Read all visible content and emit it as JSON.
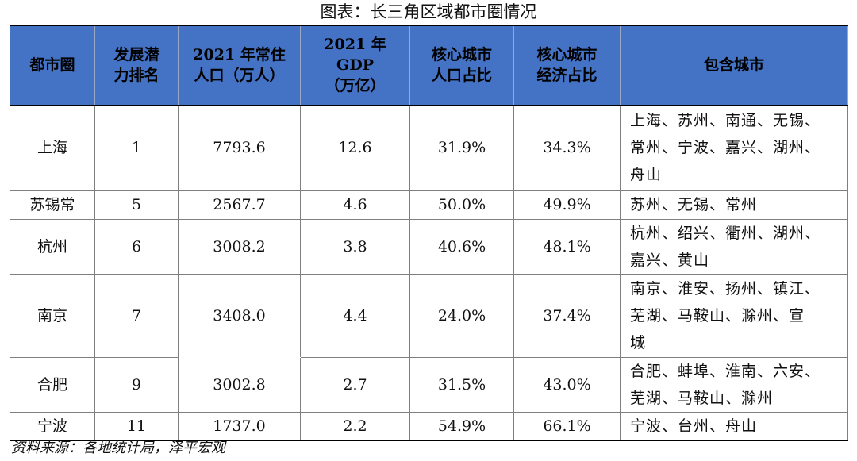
{
  "caption": "图表：长三角区域都市圈情况",
  "headers": {
    "c1": [
      "都市圈"
    ],
    "c2": [
      "发展潜",
      "力排名"
    ],
    "c3": [
      "2021 年常住",
      "人口（万人）"
    ],
    "c4": [
      "2021 年 GDP",
      "（万亿）"
    ],
    "c5": [
      "核心城市",
      "人口占比"
    ],
    "c6": [
      "核心城市",
      "经济占比"
    ],
    "c7": [
      "包含城市"
    ]
  },
  "rows": [
    {
      "name": "上海",
      "rank": "1",
      "pop": "7793.6",
      "gdp": "12.6",
      "pop_share": "31.9%",
      "econ_share": "34.3%",
      "cities": [
        "上海、苏州、南通、无锡、",
        "常州、宁波、嘉兴、湖州、",
        "舟山"
      ]
    },
    {
      "name": "苏锡常",
      "rank": "5",
      "pop": "2567.7",
      "gdp": "4.6",
      "pop_share": "50.0%",
      "econ_share": "49.9%",
      "cities": [
        "苏州、无锡、常州"
      ]
    },
    {
      "name": "杭州",
      "rank": "6",
      "pop": "3008.2",
      "gdp": "3.8",
      "pop_share": "40.6%",
      "econ_share": "48.1%",
      "cities": [
        "杭州、绍兴、衢州、湖州、",
        "嘉兴、黄山"
      ]
    },
    {
      "name": "南京",
      "rank": "7",
      "pop": "3408.0",
      "gdp": "4.4",
      "pop_share": "24.0%",
      "econ_share": "37.4%",
      "cities": [
        "南京、淮安、扬州、镇江、",
        "芜湖、马鞍山、滁州、宣",
        "城"
      ]
    },
    {
      "name": "合肥",
      "rank": "9",
      "pop": "3002.8",
      "gdp": "2.7",
      "pop_share": "31.5%",
      "econ_share": "43.0%",
      "cities": [
        "合肥、蚌埠、淮南、六安、",
        "芜湖、马鞍山、滁州"
      ]
    },
    {
      "name": "宁波",
      "rank": "11",
      "pop": "1737.0",
      "gdp": "2.2",
      "pop_share": "54.9%",
      "econ_share": "66.1%",
      "cities": [
        "宁波、台州、舟山"
      ]
    }
  ],
  "source": "资料来源：各地统计局，泽平宏观"
}
